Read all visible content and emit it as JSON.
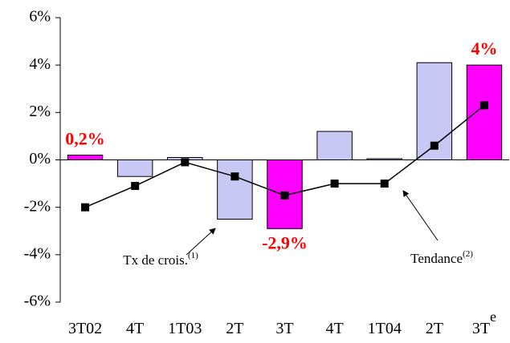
{
  "chart_data": {
    "type": "bar",
    "categories": [
      "3T02",
      "4T",
      "1T03",
      "2T",
      "3T",
      "4T",
      "1T04",
      "2T",
      "3T"
    ],
    "category_superscripts": [
      null,
      null,
      null,
      null,
      null,
      null,
      null,
      null,
      "e"
    ],
    "series": [
      {
        "type": "bar",
        "colors": [
          "#ff00ff",
          "#c8c8f4",
          "#c8c8f4",
          "#c8c8f4",
          "#ff00ff",
          "#c8c8f4",
          "#c8c8f4",
          "#c8c8f4",
          "#ff00ff"
        ],
        "values": [
          0.2,
          -0.7,
          0.1,
          -2.5,
          -2.9,
          1.2,
          0.05,
          4.1,
          4
        ],
        "value_labels": [
          "0,2%",
          null,
          null,
          null,
          "-2,9%",
          null,
          null,
          null,
          "4%"
        ]
      },
      {
        "type": "line",
        "color": "#000000",
        "values": [
          -2,
          -1.1,
          -0.1,
          -0.7,
          -1.5,
          -1,
          -1,
          0.6,
          2.3
        ]
      }
    ],
    "annotations": [
      {
        "text": "Tx de crois.",
        "superscript": "(1)"
      },
      {
        "text": "Tendance",
        "superscript": "(2)"
      }
    ],
    "ylim": [
      -6,
      6
    ],
    "yticks": [
      {
        "value": -6,
        "label": "-6%"
      },
      {
        "value": -4,
        "label": "-4%"
      },
      {
        "value": -2,
        "label": "-2%"
      },
      {
        "value": 0,
        "label": "0%"
      },
      {
        "value": 2,
        "label": "2%"
      },
      {
        "value": 4,
        "label": "4%"
      },
      {
        "value": 6,
        "label": "6%"
      }
    ]
  }
}
